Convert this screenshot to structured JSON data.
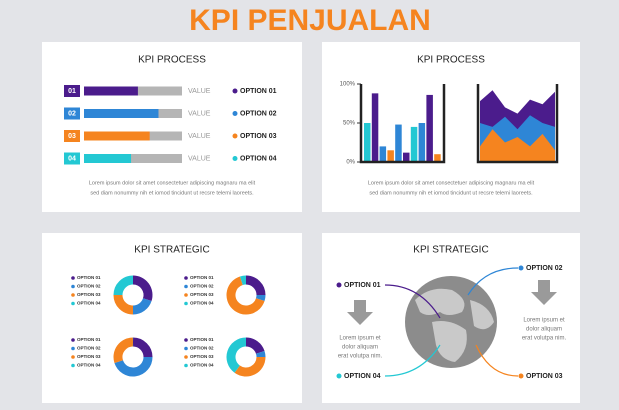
{
  "header": {
    "title": "KPI PENJUALAN"
  },
  "panels": [
    {
      "title": "KPI PROCESS",
      "max": 100,
      "rows": [
        {
          "index": "01",
          "label": "VALUE",
          "option": "OPTION 01",
          "value": 55,
          "color": "#4b1c8c"
        },
        {
          "index": "02",
          "label": "VALUE",
          "option": "OPTION 02",
          "value": 76,
          "color": "#2e86d6"
        },
        {
          "index": "03",
          "label": "VALUE",
          "option": "OPTION 03",
          "value": 67,
          "color": "#f5841f"
        },
        {
          "index": "04",
          "label": "VALUE",
          "option": "OPTION 04",
          "value": 48,
          "color": "#23c8d3"
        }
      ],
      "text": [
        "Lorem ipsum dolor sit amet consectetuer adipiscing magnaru ma elit",
        "sed diam nonummy nih et iomod tincidunt ut recsre telemi laoreets."
      ]
    },
    {
      "title": "KPI PROCESS",
      "ylim": [
        0,
        100
      ],
      "yticks": [
        {
          "value": 100,
          "label": "100%"
        },
        {
          "value": 50,
          "label": "50%"
        },
        {
          "value": 0,
          "label": "0%"
        }
      ],
      "bars": {
        "values": [
          50,
          88,
          20,
          15,
          48,
          12,
          45,
          50,
          86,
          10
        ],
        "colors": [
          "#23c8d3",
          "#4b1c8c",
          "#2e86d6",
          "#f5841f",
          "#2e86d6",
          "#4b1c8c",
          "#23c8d3",
          "#2e86d6",
          "#4b1c8c",
          "#f5841f"
        ]
      },
      "areas": [
        {
          "color": "#4b1c8c",
          "values": [
            78,
            92,
            70,
            62,
            80,
            74,
            90
          ]
        },
        {
          "color": "#2e86d6",
          "values": [
            50,
            45,
            58,
            42,
            60,
            50,
            45
          ]
        },
        {
          "color": "#f5841f",
          "values": [
            20,
            42,
            25,
            32,
            20,
            36,
            15
          ]
        }
      ],
      "text": [
        "Lorem ipsum dolor sit amet consectetuer adipiscing magnaru ma elit",
        "sed diam nonummy nih et iomod tincidunt ut recsre telemi laoreets."
      ]
    },
    {
      "title": "KPI STRATEGIC",
      "legend": [
        "OPTION 01",
        "OPTION 02",
        "OPTION 03",
        "OPTION 04"
      ],
      "colors": [
        "#4b1c8c",
        "#2e86d6",
        "#f5841f",
        "#23c8d3"
      ],
      "donuts": [
        [
          30,
          20,
          25,
          25
        ],
        [
          25,
          5,
          65,
          5
        ],
        [
          25,
          45,
          30,
          0
        ],
        [
          20,
          5,
          35,
          40
        ]
      ]
    },
    {
      "title": "KPI STRATEGIC",
      "options": [
        {
          "label": "OPTION 01",
          "color": "#4b1c8c"
        },
        {
          "label": "OPTION 02",
          "color": "#2e86d6"
        },
        {
          "label": "OPTION 03",
          "color": "#f5841f"
        },
        {
          "label": "OPTION 04",
          "color": "#23c8d3"
        }
      ],
      "left_text": [
        "Lorem ipsum et",
        "dolor aliquam",
        "erat volutpa nim."
      ],
      "right_text": [
        "Lorem ipsum et",
        "dolor aliquam",
        "erat volutpa nim."
      ]
    }
  ]
}
